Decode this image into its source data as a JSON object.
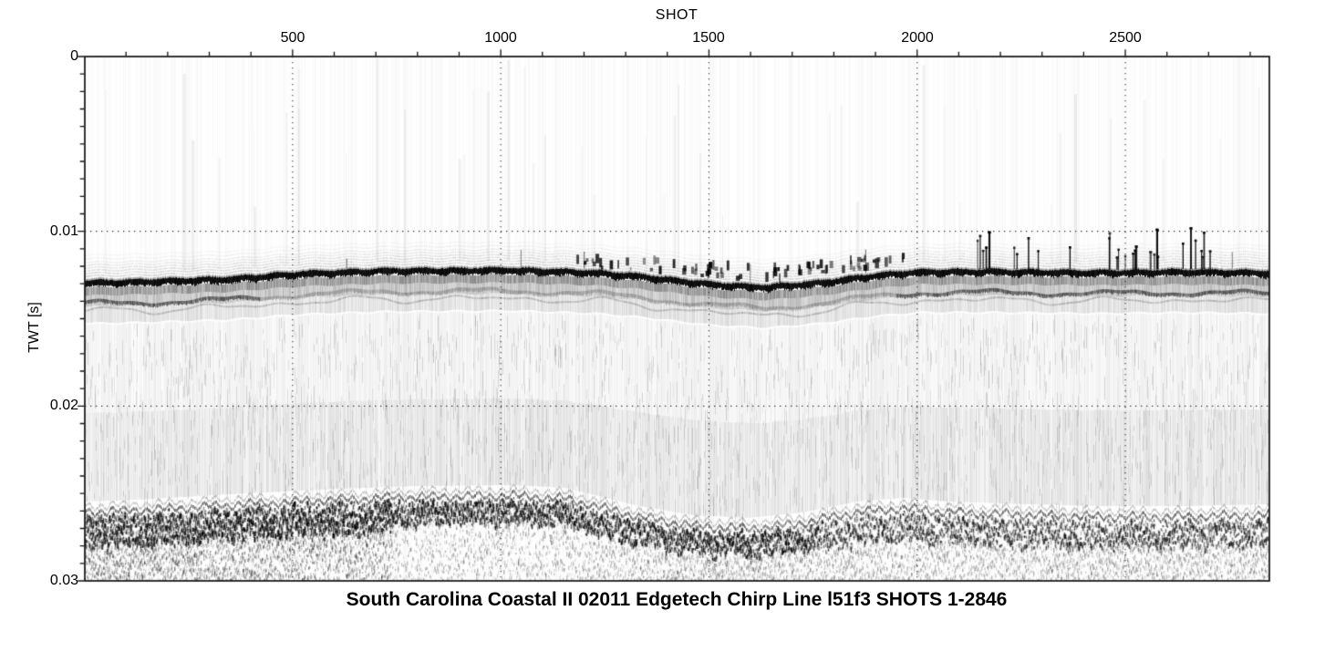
{
  "figure": {
    "background_color": "#ffffff",
    "text_color": "#000000",
    "axis_color": "#111111"
  },
  "chart_data": {
    "type": "heatmap",
    "title": "South Carolina Coastal II 02011 Edgetech Chirp Line l51f3 SHOTS 1-2846",
    "xlabel": "SHOT",
    "ylabel": "TWT [s]",
    "x_range": [
      1,
      2846
    ],
    "y_range_s": [
      0,
      0.03
    ],
    "x_ticks": [
      {
        "value": 500,
        "label": "500"
      },
      {
        "value": 1000,
        "label": "1000"
      },
      {
        "value": 1500,
        "label": "1500"
      },
      {
        "value": 2000,
        "label": "2000"
      },
      {
        "value": 2500,
        "label": "2500"
      }
    ],
    "x_minor_tick_step": 100,
    "y_ticks": [
      {
        "value": 0,
        "label": "0"
      },
      {
        "value": 0.01,
        "label": "0.01"
      },
      {
        "value": 0.02,
        "label": "0.02"
      },
      {
        "value": 0.03,
        "label": "0.03"
      }
    ],
    "y_minor_tick_step_s": 0.001,
    "grid": {
      "style": "dotted",
      "vertical_at_major_x": true,
      "horizontal_at_major_y": true
    },
    "colormap": "grayscale, white = low amplitude, black = high amplitude",
    "horizons": {
      "seafloor_shot_twt_s": [
        [
          1,
          0.01294
        ],
        [
          126,
          0.01289
        ],
        [
          345,
          0.01273
        ],
        [
          520,
          0.01242
        ],
        [
          717,
          0.01226
        ],
        [
          1024,
          0.01221
        ],
        [
          1221,
          0.01236
        ],
        [
          1330,
          0.01257
        ],
        [
          1505,
          0.01304
        ],
        [
          1637,
          0.0132
        ],
        [
          1768,
          0.01294
        ],
        [
          1900,
          0.01252
        ],
        [
          2009,
          0.01231
        ],
        [
          2206,
          0.01231
        ],
        [
          2425,
          0.01237
        ],
        [
          2644,
          0.01231
        ],
        [
          2846,
          0.01237
        ]
      ],
      "deep_reflector_shot_twt_s": [
        [
          1,
          0.02598
        ],
        [
          126,
          0.02588
        ],
        [
          345,
          0.02557
        ],
        [
          564,
          0.0253
        ],
        [
          783,
          0.0251
        ],
        [
          1024,
          0.02504
        ],
        [
          1155,
          0.0252
        ],
        [
          1243,
          0.02572
        ],
        [
          1330,
          0.02624
        ],
        [
          1462,
          0.02676
        ],
        [
          1593,
          0.02692
        ],
        [
          1724,
          0.02661
        ],
        [
          1856,
          0.02598
        ],
        [
          1966,
          0.02577
        ],
        [
          2075,
          0.02598
        ],
        [
          2206,
          0.02609
        ],
        [
          2425,
          0.02624
        ],
        [
          2644,
          0.02624
        ],
        [
          2846,
          0.02614
        ]
      ],
      "sub_bottom_reflector": {
        "offset_below_seafloor_s": 0.0011,
        "strong_shot_ranges": [
          [
            1,
            420
          ],
          [
            1950,
            2846
          ]
        ]
      }
    },
    "noise_spike_shot_ranges": [
      [
        1180,
        2010
      ],
      [
        2140,
        2710
      ]
    ]
  }
}
